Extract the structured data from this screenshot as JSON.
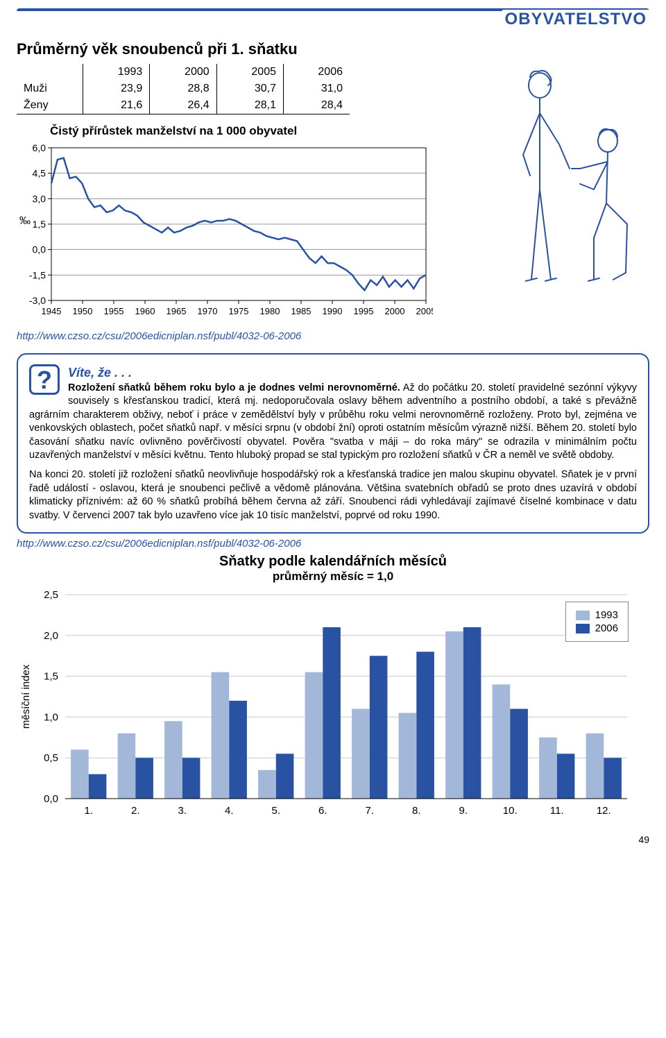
{
  "header": {
    "title": "OBYVATELSTVO"
  },
  "table1": {
    "title": "Průměrný věk snoubenců při 1. sňatku",
    "years": [
      "1993",
      "2000",
      "2005",
      "2006"
    ],
    "rows": [
      {
        "label": "Muži",
        "vals": [
          "23,9",
          "28,8",
          "30,7",
          "31,0"
        ]
      },
      {
        "label": "Ženy",
        "vals": [
          "21,6",
          "26,4",
          "28,1",
          "28,4"
        ]
      }
    ]
  },
  "chart1": {
    "title": "Čistý přírůstek manželství na 1 000 obyvatel",
    "ylabel": "‰",
    "ylim": [
      -3.0,
      6.0
    ],
    "ytick_step": 1.5,
    "yticks": [
      "6,0",
      "4,5",
      "3,0",
      "1,5",
      "0,0",
      "-1,5",
      "-3,0"
    ],
    "xticks": [
      "1945",
      "1950",
      "1955",
      "1960",
      "1965",
      "1970",
      "1975",
      "1980",
      "1985",
      "1990",
      "1995",
      "2000",
      "2005"
    ],
    "line_color": "#2952a3",
    "line_width": 2.5,
    "grid_color": "#000000",
    "background_color": "#ffffff",
    "values": [
      3.9,
      5.3,
      5.4,
      4.2,
      4.3,
      3.9,
      3.0,
      2.5,
      2.6,
      2.2,
      2.3,
      2.6,
      2.3,
      2.2,
      2.0,
      1.6,
      1.4,
      1.2,
      1.0,
      1.3,
      1.0,
      1.1,
      1.3,
      1.4,
      1.6,
      1.7,
      1.6,
      1.7,
      1.7,
      1.8,
      1.7,
      1.5,
      1.3,
      1.1,
      1.0,
      0.8,
      0.7,
      0.6,
      0.7,
      0.6,
      0.5,
      0.0,
      -0.5,
      -0.8,
      -0.4,
      -0.8,
      -0.8,
      -1.0,
      -1.2,
      -1.5,
      -2.0,
      -2.4,
      -1.8,
      -2.1,
      -1.6,
      -2.2,
      -1.8,
      -2.2,
      -1.8,
      -2.3,
      -1.7,
      -1.5
    ]
  },
  "info": {
    "title": "Víte, že . . .",
    "p1": "Rozložení sňatků během roku bylo a je dodnes velmi nerovnoměrné.",
    "p2": "Až do počátku 20. století pravidelné sezónní výkyvy souvisely s křesťanskou tradicí, která mj. nedoporučovala oslavy během adventního a postního období, a také s převážně agrárním charakterem obživy, neboť i práce v zemědělství byly v průběhu roku velmi nerovnoměrně rozloženy. Proto byl, zejména ve venkovských oblastech, počet sňatků např. v měsíci srpnu (v období žní) oproti ostatním měsícům výrazně nižší. Během 20. století bylo časování sňatku navíc ovlivněno pověrčivostí obyvatel. Pověra \"svatba v máji – do roka máry\" se odrazila v minimálním počtu uzavřených manželství v měsíci květnu. Tento hluboký propad se stal typickým pro rozložení sňatků v ČR a neměl ve světě obdoby.",
    "p3": "Na konci 20. století již rozložení sňatků neovlivňuje hospodářský rok a křesťanská tradice jen malou skupinu obyvatel. Sňatek je v první řadě událostí - oslavou, která je snoubenci pečlivě a vědomě plánována. Většina svatebních obřadů se proto dnes uzavírá v období klimaticky příznivém: až 60 % sňatků probíhá během června až září. Snoubenci rádi vyhledávají zajímavé číselné kombinace v datu svatby. V červenci 2007 tak bylo uzavřeno více jak 10 tisíc manželství, poprvé od roku 1990."
  },
  "url": "http://www.czso.cz/csu/2006edicniplan.nsf/publ/4032-06-2006",
  "chart2": {
    "title": "Sňatky podle kalendářních měsíců",
    "subtitle": "průměrný měsíc = 1,0",
    "ylabel": "měsíční index",
    "ylim": [
      0.0,
      2.5
    ],
    "ytick_step": 0.5,
    "yticks": [
      "2,5",
      "2,0",
      "1,5",
      "1,0",
      "0,5",
      "0,0"
    ],
    "xticks": [
      "1.",
      "2.",
      "3.",
      "4.",
      "5.",
      "6.",
      "7.",
      "8.",
      "9.",
      "10.",
      "11.",
      "12."
    ],
    "series": [
      {
        "label": "1993",
        "color": "#a3b8d9",
        "values": [
          0.6,
          0.8,
          0.95,
          1.55,
          0.35,
          1.55,
          1.1,
          1.05,
          2.05,
          1.4,
          0.75,
          0.8
        ]
      },
      {
        "label": "2006",
        "color": "#2952a3",
        "values": [
          0.3,
          0.5,
          0.5,
          1.2,
          0.55,
          2.1,
          1.75,
          1.8,
          2.1,
          1.1,
          0.55,
          0.5
        ]
      }
    ],
    "bar_width": 0.38,
    "grid_color": "#c8c8c8",
    "background_color": "#ffffff"
  },
  "page_number": "49"
}
